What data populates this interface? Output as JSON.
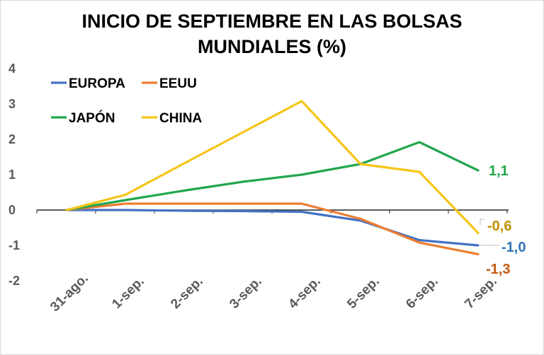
{
  "chart_data": {
    "type": "line",
    "title_line1": "INICIO DE SEPTIEMBRE EN LAS BOLSAS",
    "title_line2": "MUNDIALES (%)",
    "categories": [
      "31-ago.",
      "1-sep.",
      "2-sep.",
      "3-sep.",
      "4-sep.",
      "5-sep.",
      "6-sep.",
      "7-sep."
    ],
    "ylim": [
      -2,
      4
    ],
    "yticks": [
      4,
      3,
      2,
      1,
      0,
      -1,
      -2
    ],
    "grid": false,
    "legend_position": "top-left",
    "series": [
      {
        "name": "EUROPA",
        "color": "#4472c4",
        "values": [
          0,
          0,
          -0.02,
          -0.03,
          -0.05,
          -0.3,
          -0.85,
          -1.0
        ],
        "end_label": "-1,0",
        "end_label_color": "#2e75b6"
      },
      {
        "name": "EEUU",
        "color": "#ed7d31",
        "values": [
          0,
          0.18,
          0.18,
          0.18,
          0.18,
          -0.25,
          -0.92,
          -1.25
        ],
        "end_label": "-1,3",
        "end_label_color": "#c55a11"
      },
      {
        "name": "JAPÓN",
        "color": "#21a64b",
        "values": [
          0,
          0.28,
          0.55,
          0.8,
          1.0,
          1.3,
          1.92,
          1.12
        ],
        "end_label": "1,1",
        "end_label_color": "#21a64b"
      },
      {
        "name": "CHINA",
        "color": "#f6c518",
        "values": [
          0,
          0.43,
          1.32,
          2.2,
          3.08,
          1.3,
          1.08,
          -0.65
        ],
        "end_label": "-0,6",
        "end_label_color": "#bf9000"
      }
    ]
  }
}
